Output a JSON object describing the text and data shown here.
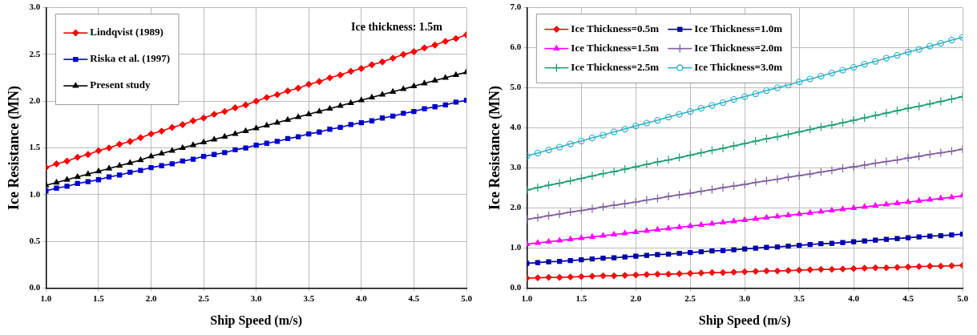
{
  "chart_data": [
    {
      "type": "line",
      "xlabel": "Ship Speed (m/s)",
      "ylabel": "Ice Resistance (MN)",
      "annotations": [
        "Ice thickness: 1.5m"
      ],
      "x": [
        1.0,
        1.1,
        1.2,
        1.3,
        1.4,
        1.5,
        1.6,
        1.7,
        1.8,
        1.9,
        2.0,
        2.1,
        2.2,
        2.3,
        2.4,
        2.5,
        2.6,
        2.7,
        2.8,
        2.9,
        3.0,
        3.1,
        3.2,
        3.3,
        3.4,
        3.5,
        3.6,
        3.7,
        3.8,
        3.9,
        4.0,
        4.1,
        4.2,
        4.3,
        4.4,
        4.5,
        4.6,
        4.7,
        4.8,
        4.9,
        5.0
      ],
      "xlim": [
        1,
        5
      ],
      "xticks": [
        {
          "value": 1,
          "label": "1.0"
        },
        1.5,
        {
          "value": 2,
          "label": "2.0"
        },
        2.5,
        {
          "value": 3,
          "label": "3.0"
        },
        3.5,
        {
          "value": 4,
          "label": "4.0"
        },
        4.5,
        {
          "value": 5,
          "label": "5.0"
        }
      ],
      "ylim": [
        0,
        3
      ],
      "yticks": [
        {
          "value": 0,
          "label": "0.0"
        },
        0.5,
        {
          "value": 1,
          "label": "1.0"
        },
        1.5,
        {
          "value": 2,
          "label": "2.0"
        },
        2.5,
        {
          "value": 3,
          "label": "3.0"
        }
      ],
      "grid": true,
      "legend": "top left",
      "line_style": "solid",
      "series": [
        {
          "name": "Lindqvist (1989)",
          "color": "#ff0000",
          "marker": "diamond",
          "values": [
            1.29,
            1.33,
            1.36,
            1.4,
            1.43,
            1.47,
            1.5,
            1.54,
            1.57,
            1.61,
            1.65,
            1.68,
            1.72,
            1.75,
            1.79,
            1.82,
            1.86,
            1.89,
            1.93,
            1.96,
            2.0,
            2.04,
            2.07,
            2.11,
            2.14,
            2.18,
            2.21,
            2.25,
            2.28,
            2.32,
            2.35,
            2.39,
            2.42,
            2.46,
            2.5,
            2.53,
            2.57,
            2.6,
            2.64,
            2.67,
            2.71
          ]
        },
        {
          "name": "Riska et al. (1997)",
          "color": "#0000cc",
          "marker": "square",
          "values": [
            1.04,
            1.07,
            1.09,
            1.12,
            1.14,
            1.16,
            1.19,
            1.21,
            1.24,
            1.26,
            1.29,
            1.31,
            1.33,
            1.36,
            1.38,
            1.41,
            1.43,
            1.45,
            1.48,
            1.5,
            1.53,
            1.55,
            1.57,
            1.6,
            1.62,
            1.65,
            1.67,
            1.7,
            1.72,
            1.75,
            1.77,
            1.79,
            1.82,
            1.84,
            1.87,
            1.89,
            1.92,
            1.94,
            1.96,
            1.99,
            2.01
          ]
        },
        {
          "name": "Present study",
          "color": "#000000",
          "marker": "triangle",
          "values": [
            1.1,
            1.13,
            1.16,
            1.19,
            1.22,
            1.25,
            1.28,
            1.31,
            1.34,
            1.37,
            1.41,
            1.44,
            1.47,
            1.5,
            1.53,
            1.56,
            1.59,
            1.62,
            1.65,
            1.68,
            1.71,
            1.74,
            1.77,
            1.8,
            1.83,
            1.86,
            1.89,
            1.92,
            1.95,
            1.98,
            2.01,
            2.04,
            2.07,
            2.1,
            2.13,
            2.16,
            2.19,
            2.22,
            2.25,
            2.28,
            2.31
          ]
        }
      ]
    },
    {
      "type": "line",
      "xlabel": "Ship Speed (m/s)",
      "ylabel": "Ice Resistance (MN)",
      "x": [
        1.0,
        1.1,
        1.2,
        1.3,
        1.4,
        1.5,
        1.6,
        1.7,
        1.8,
        1.9,
        2.0,
        2.1,
        2.2,
        2.3,
        2.4,
        2.5,
        2.6,
        2.7,
        2.8,
        2.9,
        3.0,
        3.1,
        3.2,
        3.3,
        3.4,
        3.5,
        3.6,
        3.7,
        3.8,
        3.9,
        4.0,
        4.1,
        4.2,
        4.3,
        4.4,
        4.5,
        4.6,
        4.7,
        4.8,
        4.9,
        5.0
      ],
      "xlim": [
        1,
        5
      ],
      "xticks": [
        {
          "value": 1,
          "label": "1.0"
        },
        1.5,
        {
          "value": 2,
          "label": "2.0"
        },
        2.5,
        {
          "value": 3,
          "label": "3.0"
        },
        3.5,
        {
          "value": 4,
          "label": "4.0"
        },
        4.5,
        {
          "value": 5,
          "label": "5.0"
        }
      ],
      "ylim": [
        0,
        7
      ],
      "yticks": [
        {
          "value": 0,
          "label": "0.0"
        },
        {
          "value": 1,
          "label": "1.0"
        },
        {
          "value": 2,
          "label": "2.0"
        },
        {
          "value": 3,
          "label": "3.0"
        },
        {
          "value": 4,
          "label": "4.0"
        },
        {
          "value": 5,
          "label": "5.0"
        },
        {
          "value": 6,
          "label": "6.0"
        },
        {
          "value": 7,
          "label": "7.0"
        }
      ],
      "grid": true,
      "legend": "top left",
      "line_style": "solid",
      "series": [
        {
          "name": "Ice Thickness=0.5m",
          "color": "#ee1111",
          "marker": "diamond",
          "values": [
            0.25,
            0.26,
            0.27,
            0.27,
            0.28,
            0.29,
            0.3,
            0.31,
            0.31,
            0.32,
            0.33,
            0.34,
            0.35,
            0.35,
            0.36,
            0.37,
            0.38,
            0.39,
            0.39,
            0.4,
            0.41,
            0.42,
            0.43,
            0.43,
            0.44,
            0.45,
            0.46,
            0.47,
            0.47,
            0.48,
            0.49,
            0.5,
            0.51,
            0.51,
            0.52,
            0.53,
            0.54,
            0.55,
            0.55,
            0.56,
            0.57
          ]
        },
        {
          "name": "Ice Thickness=1.0m",
          "color": "#0000aa",
          "marker": "square",
          "values": [
            0.62,
            0.64,
            0.66,
            0.67,
            0.69,
            0.71,
            0.73,
            0.75,
            0.76,
            0.78,
            0.8,
            0.82,
            0.84,
            0.85,
            0.87,
            0.89,
            0.91,
            0.93,
            0.94,
            0.96,
            0.98,
            1.0,
            1.02,
            1.03,
            1.05,
            1.07,
            1.09,
            1.11,
            1.12,
            1.14,
            1.16,
            1.18,
            1.2,
            1.22,
            1.24,
            1.26,
            1.28,
            1.3,
            1.31,
            1.33,
            1.35
          ]
        },
        {
          "name": "Ice Thickness=1.5m",
          "color": "#ff00ff",
          "marker": "triangle",
          "values": [
            1.1,
            1.13,
            1.16,
            1.19,
            1.22,
            1.25,
            1.28,
            1.31,
            1.34,
            1.37,
            1.4,
            1.43,
            1.46,
            1.49,
            1.52,
            1.55,
            1.58,
            1.61,
            1.64,
            1.67,
            1.7,
            1.73,
            1.76,
            1.79,
            1.82,
            1.85,
            1.88,
            1.91,
            1.94,
            1.97,
            2.0,
            2.03,
            2.06,
            2.09,
            2.12,
            2.15,
            2.18,
            2.21,
            2.24,
            2.27,
            2.31
          ]
        },
        {
          "name": "Ice Thickness=2.0m",
          "color": "#8060a0",
          "marker": "cross",
          "values": [
            1.72,
            1.76,
            1.81,
            1.85,
            1.9,
            1.94,
            1.98,
            2.03,
            2.07,
            2.11,
            2.15,
            2.2,
            2.24,
            2.29,
            2.33,
            2.37,
            2.42,
            2.46,
            2.51,
            2.55,
            2.59,
            2.64,
            2.68,
            2.72,
            2.77,
            2.81,
            2.85,
            2.9,
            2.94,
            2.99,
            3.03,
            3.07,
            3.12,
            3.16,
            3.2,
            3.25,
            3.29,
            3.34,
            3.38,
            3.42,
            3.47
          ]
        },
        {
          "name": "Ice Thickness=2.5m",
          "color": "#20a070",
          "marker": "cross",
          "values": [
            2.45,
            2.51,
            2.57,
            2.62,
            2.68,
            2.74,
            2.8,
            2.86,
            2.91,
            2.97,
            3.03,
            3.09,
            3.15,
            3.2,
            3.26,
            3.32,
            3.38,
            3.44,
            3.49,
            3.55,
            3.61,
            3.67,
            3.73,
            3.78,
            3.84,
            3.9,
            3.96,
            4.02,
            4.07,
            4.13,
            4.19,
            4.25,
            4.31,
            4.37,
            4.43,
            4.49,
            4.54,
            4.6,
            4.66,
            4.72,
            4.78
          ]
        },
        {
          "name": "Ice Thickness=3.0m",
          "color": "#30b0c8",
          "marker": "circle",
          "values": [
            3.3,
            3.37,
            3.45,
            3.52,
            3.6,
            3.67,
            3.75,
            3.82,
            3.9,
            3.97,
            4.05,
            4.12,
            4.19,
            4.27,
            4.34,
            4.41,
            4.49,
            4.56,
            4.63,
            4.71,
            4.78,
            4.85,
            4.93,
            5.0,
            5.07,
            5.15,
            5.22,
            5.29,
            5.37,
            5.44,
            5.51,
            5.59,
            5.66,
            5.74,
            5.81,
            5.89,
            5.96,
            6.04,
            6.11,
            6.19,
            6.26
          ]
        }
      ]
    }
  ]
}
